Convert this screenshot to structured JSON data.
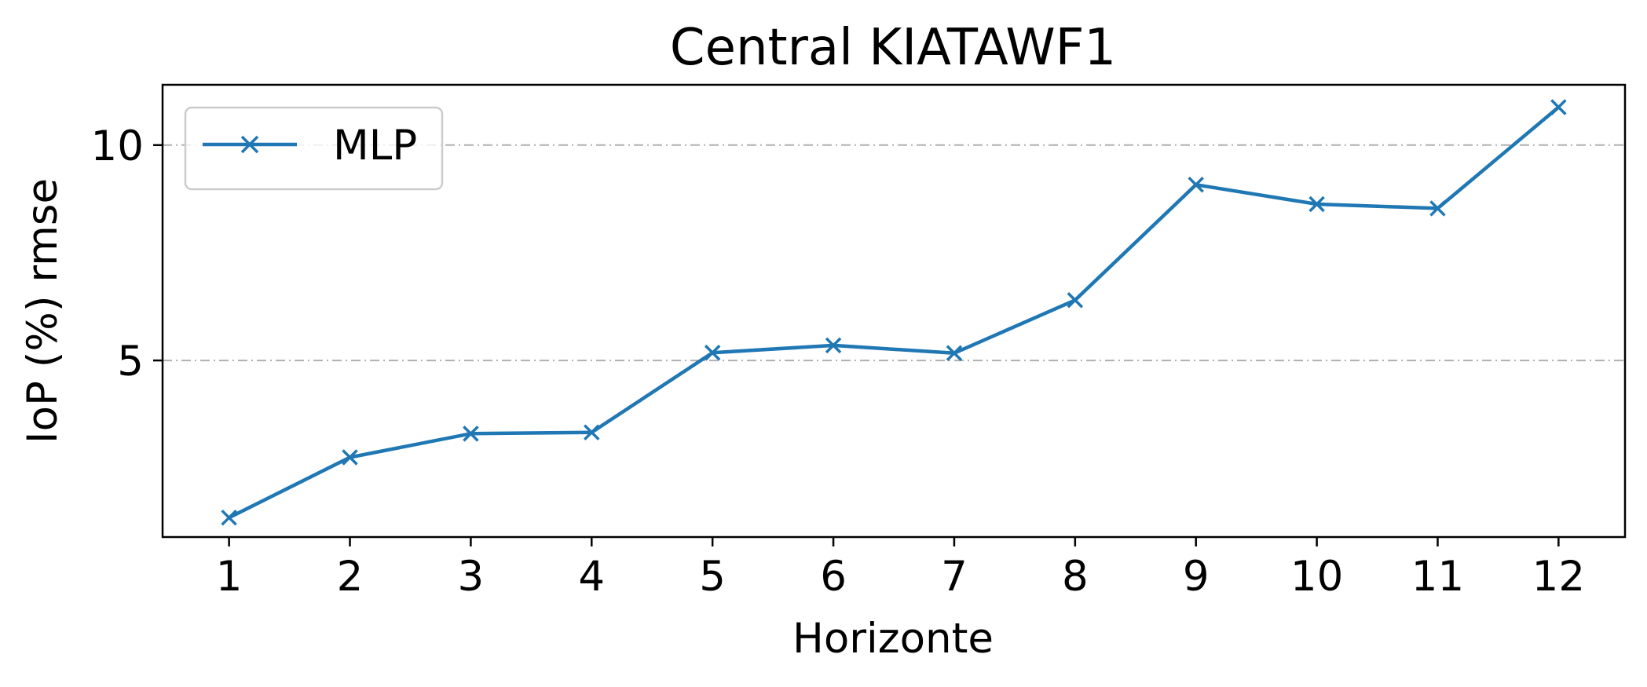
{
  "chart_data": {
    "type": "line",
    "title": "Central KIATAWF1",
    "xlabel": "Horizonte",
    "ylabel": "IoP (%) rmse",
    "x": [
      1,
      2,
      3,
      4,
      5,
      6,
      7,
      8,
      9,
      10,
      11,
      12
    ],
    "series": [
      {
        "name": "MLP",
        "color": "#1f77b4",
        "marker": "x",
        "values": [
          1.35,
          2.75,
          3.3,
          3.33,
          5.18,
          5.35,
          5.17,
          6.4,
          9.08,
          8.63,
          8.53,
          10.88
        ]
      }
    ],
    "xlim": [
      0.45,
      12.55
    ],
    "ylim": [
      0.9,
      11.4
    ],
    "xticks": [
      "1",
      "2",
      "3",
      "4",
      "5",
      "6",
      "7",
      "8",
      "9",
      "10",
      "11",
      "12"
    ],
    "yticks": [
      "5",
      "10"
    ],
    "ytick_values": [
      5,
      10
    ],
    "grid": {
      "axis": "y",
      "style": "dash-dot",
      "color": "#b0b0b0"
    },
    "legend": {
      "position": "upper left",
      "entries": [
        "MLP"
      ]
    }
  }
}
